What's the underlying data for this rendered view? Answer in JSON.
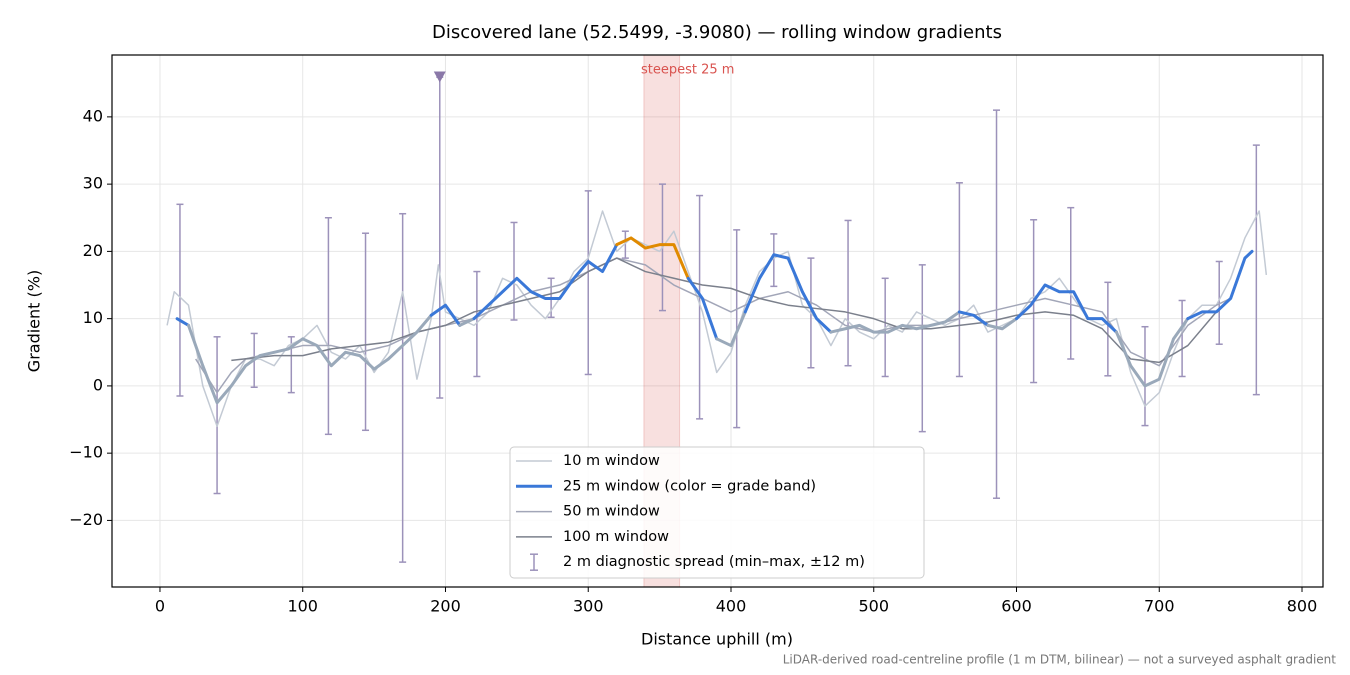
{
  "chart_data": {
    "type": "line",
    "title": "Discovered lane (52.5499, -3.9080) — rolling window gradients",
    "x_label": "Distance uphill (m)",
    "y_label": "Gradient (%)",
    "footnote": "LiDAR-derived road-centreline profile (1 m DTM, bilinear) — not a surveyed asphalt gradient",
    "xlim": [
      -33.6,
      814.7
    ],
    "ylim": [
      -29.9,
      49.2
    ],
    "xticks": [
      0,
      100,
      200,
      300,
      400,
      500,
      600,
      700,
      800
    ],
    "yticks": [
      {
        "value": -20,
        "label": "−20"
      },
      {
        "value": -10,
        "label": "−10"
      },
      0,
      10,
      20,
      30,
      40
    ],
    "grid": true,
    "steepest": {
      "label": "steepest 25 m",
      "start": 339,
      "end": 364,
      "color": "#d9534f"
    },
    "series": [
      {
        "name": "10 m window",
        "color": "#c3cad4",
        "width": 1.5,
        "x": [
          5,
          10,
          15,
          20,
          30,
          40,
          50,
          60,
          70,
          80,
          90,
          100,
          110,
          120,
          130,
          140,
          150,
          160,
          170,
          180,
          190,
          195,
          200,
          210,
          220,
          230,
          240,
          250,
          260,
          270,
          280,
          290,
          300,
          310,
          320,
          330,
          340,
          350,
          360,
          370,
          380,
          390,
          400,
          410,
          420,
          430,
          440,
          450,
          460,
          470,
          480,
          490,
          500,
          510,
          520,
          530,
          540,
          550,
          560,
          570,
          580,
          590,
          600,
          610,
          620,
          630,
          640,
          650,
          660,
          670,
          680,
          690,
          700,
          710,
          720,
          730,
          740,
          750,
          760,
          770,
          775
        ],
        "values": [
          9,
          14,
          13,
          12,
          0,
          -6,
          0,
          4,
          4,
          3,
          6,
          7,
          9,
          5,
          4,
          6,
          2,
          5,
          14,
          1,
          10,
          18,
          11,
          10,
          9,
          11,
          16,
          15,
          12,
          10,
          13,
          17,
          19,
          26,
          20,
          22,
          21,
          20,
          23,
          17,
          11,
          2,
          5,
          12,
          17,
          19,
          20,
          12,
          10,
          6,
          10,
          8,
          7,
          9,
          8,
          11,
          10,
          9,
          10,
          12,
          8,
          9,
          10,
          13,
          14,
          16,
          13,
          10,
          9,
          10,
          2,
          -3,
          -1,
          5,
          10,
          12,
          12,
          16,
          22,
          26,
          16.5
        ]
      },
      {
        "name": "25 m window (color = grade band)",
        "color": "#3a78d8",
        "width": 3,
        "grade_bands": [
          {
            "below": 10,
            "color": "#9aa9ba"
          },
          {
            "below": 20,
            "color": "#3a78d8"
          },
          {
            "color": "#e08a00"
          }
        ],
        "x": [
          12,
          20,
          30,
          40,
          50,
          60,
          70,
          80,
          90,
          100,
          110,
          120,
          130,
          140,
          150,
          160,
          170,
          180,
          190,
          200,
          210,
          220,
          230,
          240,
          250,
          260,
          270,
          280,
          290,
          300,
          310,
          320,
          330,
          340,
          350,
          360,
          370,
          380,
          390,
          400,
          410,
          420,
          430,
          440,
          450,
          460,
          470,
          480,
          490,
          500,
          510,
          520,
          530,
          540,
          550,
          560,
          570,
          580,
          590,
          600,
          610,
          620,
          630,
          640,
          650,
          660,
          670,
          680,
          690,
          700,
          710,
          720,
          730,
          740,
          750,
          760,
          765
        ],
        "values": [
          10,
          9,
          3,
          -2.5,
          0,
          3,
          4.5,
          5,
          5.5,
          7,
          6,
          3,
          5,
          4.5,
          2.5,
          4,
          6,
          8,
          10.5,
          12,
          9,
          10,
          12,
          14,
          16,
          14,
          13,
          13,
          16,
          18.5,
          17,
          21,
          22,
          20.5,
          21,
          21,
          16,
          13,
          7,
          6,
          11,
          16,
          19.5,
          19,
          14,
          10,
          8,
          8.5,
          9,
          8,
          8,
          9,
          8.5,
          9,
          9.5,
          11,
          10.5,
          9,
          8.5,
          10,
          12,
          15,
          14,
          14,
          10,
          10,
          8,
          3,
          0,
          1,
          7,
          10,
          11,
          11,
          13,
          19,
          20
        ]
      },
      {
        "name": "50 m window",
        "color": "#a2a6b8",
        "width": 1.5,
        "x": [
          25,
          40,
          50,
          60,
          80,
          100,
          120,
          140,
          160,
          180,
          200,
          220,
          240,
          260,
          280,
          300,
          320,
          340,
          360,
          380,
          400,
          420,
          440,
          460,
          480,
          500,
          520,
          540,
          560,
          580,
          600,
          620,
          640,
          660,
          680,
          700,
          720,
          740,
          750
        ],
        "values": [
          4,
          -1,
          2,
          4,
          5,
          6,
          6,
          5,
          6,
          8,
          9,
          10,
          12,
          14,
          15,
          17,
          19,
          18,
          15,
          13,
          11,
          13,
          14,
          12,
          9,
          8,
          9,
          9,
          10,
          11,
          12,
          13,
          12,
          11,
          5,
          3,
          9,
          12,
          13
        ]
      },
      {
        "name": "100 m window",
        "color": "#7b808c",
        "width": 1.5,
        "x": [
          50,
          80,
          100,
          120,
          140,
          160,
          180,
          200,
          220,
          240,
          260,
          280,
          300,
          320,
          340,
          360,
          380,
          400,
          420,
          440,
          460,
          480,
          500,
          520,
          540,
          560,
          580,
          600,
          620,
          640,
          660,
          680,
          700,
          720,
          740
        ],
        "values": [
          3.8,
          4.5,
          4.5,
          5.5,
          6,
          6.5,
          8,
          9,
          11,
          12,
          13,
          14,
          17,
          19,
          17,
          16,
          15,
          14.5,
          13,
          12,
          11.5,
          11,
          10,
          8.5,
          8.5,
          9,
          9.5,
          10.5,
          11,
          10.5,
          8.5,
          4,
          3.5,
          6,
          11
        ]
      }
    ],
    "spread": {
      "name": "2 m diagnostic spread (min–max, ±12 m)",
      "color": "#9c92ba",
      "x": [
        14,
        40,
        66,
        92,
        118,
        144,
        170,
        196,
        222,
        248,
        274,
        300,
        326,
        352,
        378,
        404,
        430,
        456,
        482,
        508,
        534,
        560,
        586,
        612,
        638,
        664,
        690,
        716,
        742,
        768
      ],
      "low": [
        -1.5,
        -16,
        -0.2,
        -1,
        -7.2,
        -6.6,
        -26.2,
        -1.8,
        1.4,
        9.8,
        10.2,
        1.7,
        19,
        11.2,
        -4.9,
        -6.2,
        14.8,
        2.7,
        3,
        1.4,
        -6.8,
        1.4,
        -16.7,
        0.5,
        4,
        1.5,
        -5.9,
        1.4,
        6.2,
        -1.3
      ],
      "high": [
        27,
        7.3,
        7.8,
        7.3,
        25,
        22.7,
        25.6,
        45.9,
        17,
        24.3,
        16,
        29,
        23,
        30,
        28.3,
        23.2,
        22.6,
        19,
        24.6,
        16,
        18,
        30.2,
        41,
        24.7,
        26.5,
        15.4,
        8.8,
        12.7,
        18.5,
        35.8
      ]
    },
    "peak_marker": {
      "x": 196,
      "value": 46,
      "color": "#8a78a8"
    }
  }
}
